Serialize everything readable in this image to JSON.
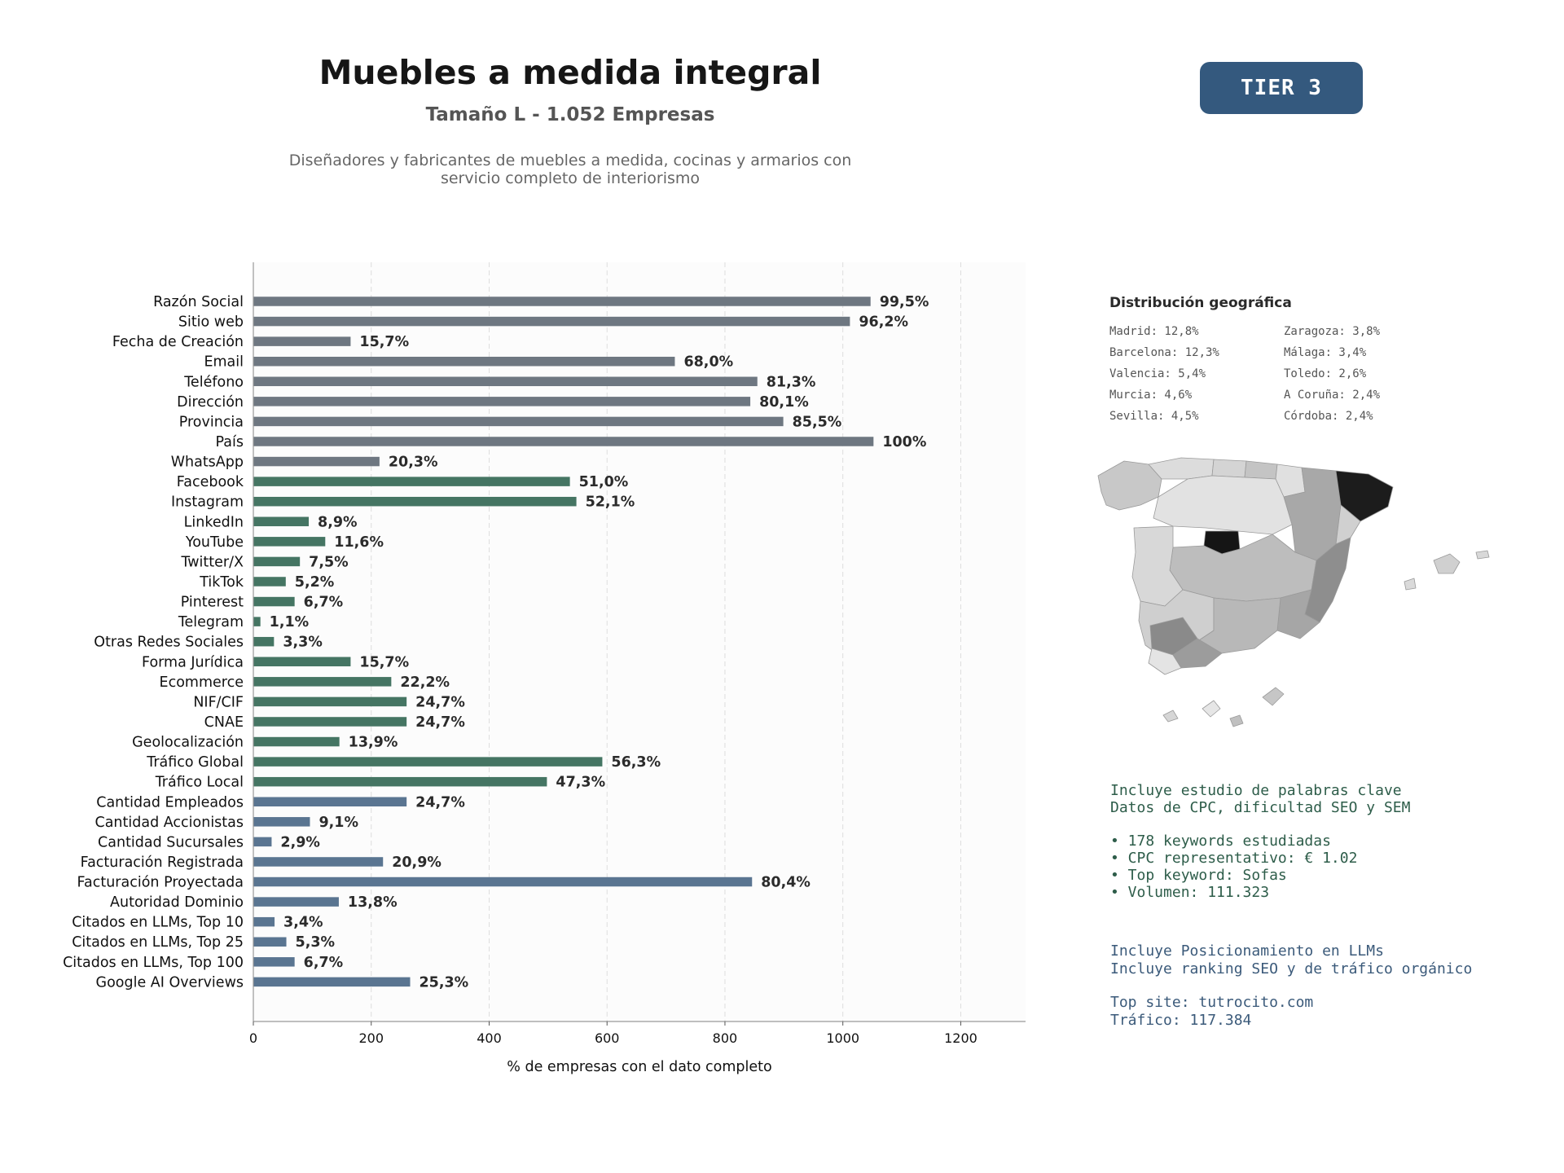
{
  "header": {
    "title": "Muebles a medida integral",
    "subtitle": "Tamaño L - 1.052 Empresas",
    "description_line1": "Diseñadores y fabricantes de muebles a medida, cocinas y armarios con",
    "description_line2": "servicio completo de interiorismo",
    "tier_badge": "TIER 3"
  },
  "colors": {
    "contact": "#6e7781",
    "social": "#457563",
    "business": "#5a7591",
    "badge": "#34597e",
    "map_highlight": "#1a1a1a"
  },
  "chart_data": {
    "type": "bar",
    "orientation": "horizontal",
    "xlabel": "% de empresas con el dato completo",
    "ylabel": "",
    "xlim": [
      0,
      1310
    ],
    "xticks": [
      0,
      200,
      400,
      600,
      800,
      1000,
      1200
    ],
    "grid": "vertical dashed",
    "categories": [
      "Razón Social",
      "Sitio web",
      "Fecha de Creación",
      "Email",
      "Teléfono",
      "Dirección",
      "Provincia",
      "País",
      "WhatsApp",
      "Facebook",
      "Instagram",
      "LinkedIn",
      "YouTube",
      "Twitter/X",
      "TikTok",
      "Pinterest",
      "Telegram",
      "Otras Redes Sociales",
      "Forma Jurídica",
      "Ecommerce",
      "NIF/CIF",
      "CNAE",
      "Geolocalización",
      "Tráfico Global",
      "Tráfico Local",
      "Cantidad Empleados",
      "Cantidad Accionistas",
      "Cantidad Sucursales",
      "Facturación Registrada",
      "Facturación Proyectada",
      "Autoridad Dominio",
      "Citados en LLMs, Top 10",
      "Citados en LLMs, Top 25",
      "Citados en LLMs, Top 100",
      "Google AI Overviews"
    ],
    "values": [
      1047,
      1012,
      165,
      715,
      855,
      843,
      899,
      1052,
      214,
      537,
      548,
      94,
      122,
      79,
      55,
      70,
      12,
      35,
      165,
      234,
      260,
      260,
      146,
      592,
      498,
      260,
      96,
      31,
      220,
      846,
      145,
      36,
      56,
      70,
      266
    ],
    "value_labels": [
      "99,5%",
      "96,2%",
      "15,7%",
      "68,0%",
      "81,3%",
      "80,1%",
      "85,5%",
      "100%",
      "20,3%",
      "51,0%",
      "52,1%",
      "8,9%",
      "11,6%",
      "7,5%",
      "5,2%",
      "6,7%",
      "1,1%",
      "3,3%",
      "15,7%",
      "22,2%",
      "24,7%",
      "24,7%",
      "13,9%",
      "56,3%",
      "47,3%",
      "24,7%",
      "9,1%",
      "2,9%",
      "20,9%",
      "80,4%",
      "13,8%",
      "3,4%",
      "5,3%",
      "6,7%",
      "25,3%"
    ],
    "groups": [
      "contact",
      "contact",
      "contact",
      "contact",
      "contact",
      "contact",
      "contact",
      "contact",
      "contact",
      "social",
      "social",
      "social",
      "social",
      "social",
      "social",
      "social",
      "social",
      "social",
      "social",
      "social",
      "social",
      "social",
      "social",
      "social",
      "social",
      "business",
      "business",
      "business",
      "business",
      "business",
      "business",
      "business",
      "business",
      "business",
      "business"
    ]
  },
  "geo": {
    "title": "Distribución geográfica",
    "items": [
      "Madrid: 12,8%",
      "Zaragoza: 3,8%",
      "Barcelona: 12,3%",
      "Málaga: 3,4%",
      "Valencia: 5,4%",
      "Toledo: 2,6%",
      "Murcia: 4,6%",
      "A Coruña: 2,4%",
      "Sevilla: 4,5%",
      "Córdoba: 2,4%"
    ]
  },
  "keywords": {
    "line1": "Incluye estudio de palabras clave",
    "line2": "Datos de CPC, dificultad SEO y SEM",
    "bullet1": "• 178 keywords estudiadas",
    "bullet2": "• CPC representativo: € 1.02",
    "bullet3": "• Top keyword: Sofas",
    "bullet4": "• Volumen: 111.323"
  },
  "llm": {
    "line1": "Incluye Posicionamiento en LLMs",
    "line2": "Incluye ranking SEO y de tráfico orgánico",
    "top_site": "Top site: tutrocito.com",
    "traffic": "Tráfico: 117.384"
  }
}
